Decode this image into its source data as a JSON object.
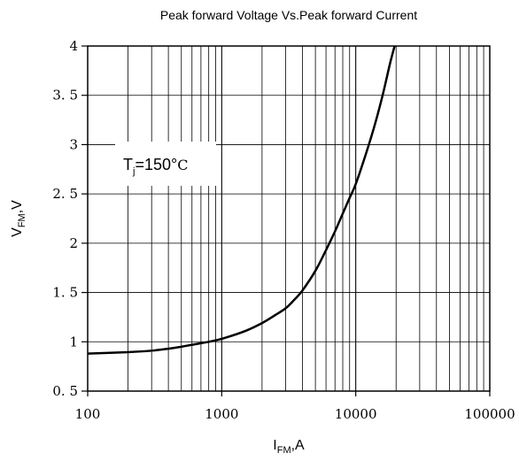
{
  "chart_data": {
    "type": "line",
    "title": "Peak forward Voltage Vs.Peak forward Current",
    "xlabel": {
      "main": "I",
      "sub": "FM",
      "suffix": ",A"
    },
    "ylabel": {
      "main": "V",
      "sub": "FM",
      "suffix": ",V"
    },
    "x_scale": "log",
    "xlim": [
      100,
      100000
    ],
    "ylim": [
      0.5,
      4
    ],
    "x_tick_values": [
      100,
      1000,
      10000,
      100000
    ],
    "x_tick_labels": [
      "100",
      "1000",
      "10000",
      "100000"
    ],
    "y_tick_values": [
      0.5,
      1,
      1.5,
      2,
      2.5,
      3,
      3.5,
      4
    ],
    "y_tick_labels": [
      "0. 5",
      "1",
      "1. 5",
      "2",
      "2. 5",
      "3",
      "3. 5",
      "4"
    ],
    "grid": true,
    "annotation": {
      "main": "T",
      "sub": "j",
      "suffix": "=150°",
      "unit": "C"
    },
    "series": [
      {
        "x": [
          100,
          200,
          300,
          400,
          500,
          600,
          800,
          1000,
          1500,
          2000,
          2500,
          3000,
          3500,
          4000,
          5000,
          6000,
          7000,
          8000,
          9000,
          10000,
          12000,
          14000,
          16000,
          18000,
          19500
        ],
        "y": [
          0.88,
          0.895,
          0.91,
          0.93,
          0.95,
          0.97,
          1.0,
          1.03,
          1.11,
          1.19,
          1.27,
          1.34,
          1.43,
          1.52,
          1.72,
          1.93,
          2.12,
          2.3,
          2.46,
          2.6,
          2.92,
          3.22,
          3.52,
          3.82,
          4.0
        ]
      }
    ]
  },
  "colors": {
    "line": "#000000",
    "grid": "#000000",
    "background": "#ffffff"
  }
}
